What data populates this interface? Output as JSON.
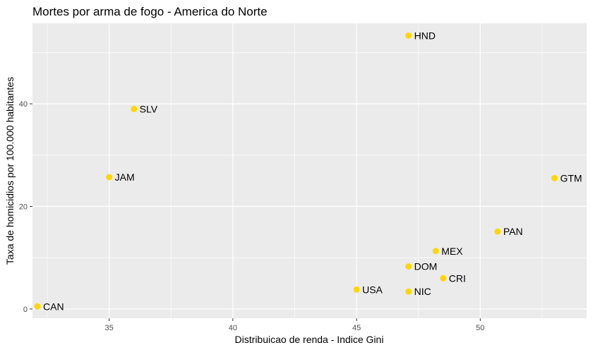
{
  "chart_data": {
    "type": "scatter",
    "title": "Mortes por arma de fogo - America do Norte",
    "xlabel": "Distribuicao de renda - Indice Gini",
    "ylabel": "Taxa de homicidios por 100.000 habitantes",
    "xlim": [
      31.9,
      54.3
    ],
    "ylim": [
      -1.8,
      55.7
    ],
    "x_ticks": [
      35,
      40,
      45,
      50
    ],
    "y_ticks": [
      0,
      20,
      40
    ],
    "x_tick_labels": [
      "35",
      "40",
      "45",
      "50"
    ],
    "y_tick_labels": [
      "0",
      "20",
      "40"
    ],
    "grid": true,
    "point_color": "#FFD700",
    "panel_background": "#EBEBEB",
    "grid_color": "#FFFFFF",
    "points": [
      {
        "label": "CAN",
        "x": 32.1,
        "y": 0.5
      },
      {
        "label": "JAM",
        "x": 35.0,
        "y": 25.7
      },
      {
        "label": "SLV",
        "x": 36.0,
        "y": 39.0
      },
      {
        "label": "HND",
        "x": 47.1,
        "y": 53.3
      },
      {
        "label": "USA",
        "x": 45.0,
        "y": 3.8
      },
      {
        "label": "NIC",
        "x": 47.1,
        "y": 3.4
      },
      {
        "label": "DOM",
        "x": 47.1,
        "y": 8.3
      },
      {
        "label": "CRI",
        "x": 48.5,
        "y": 6.0
      },
      {
        "label": "MEX",
        "x": 48.2,
        "y": 11.3
      },
      {
        "label": "PAN",
        "x": 50.7,
        "y": 15.1
      },
      {
        "label": "GTM",
        "x": 53.0,
        "y": 25.5
      }
    ]
  }
}
